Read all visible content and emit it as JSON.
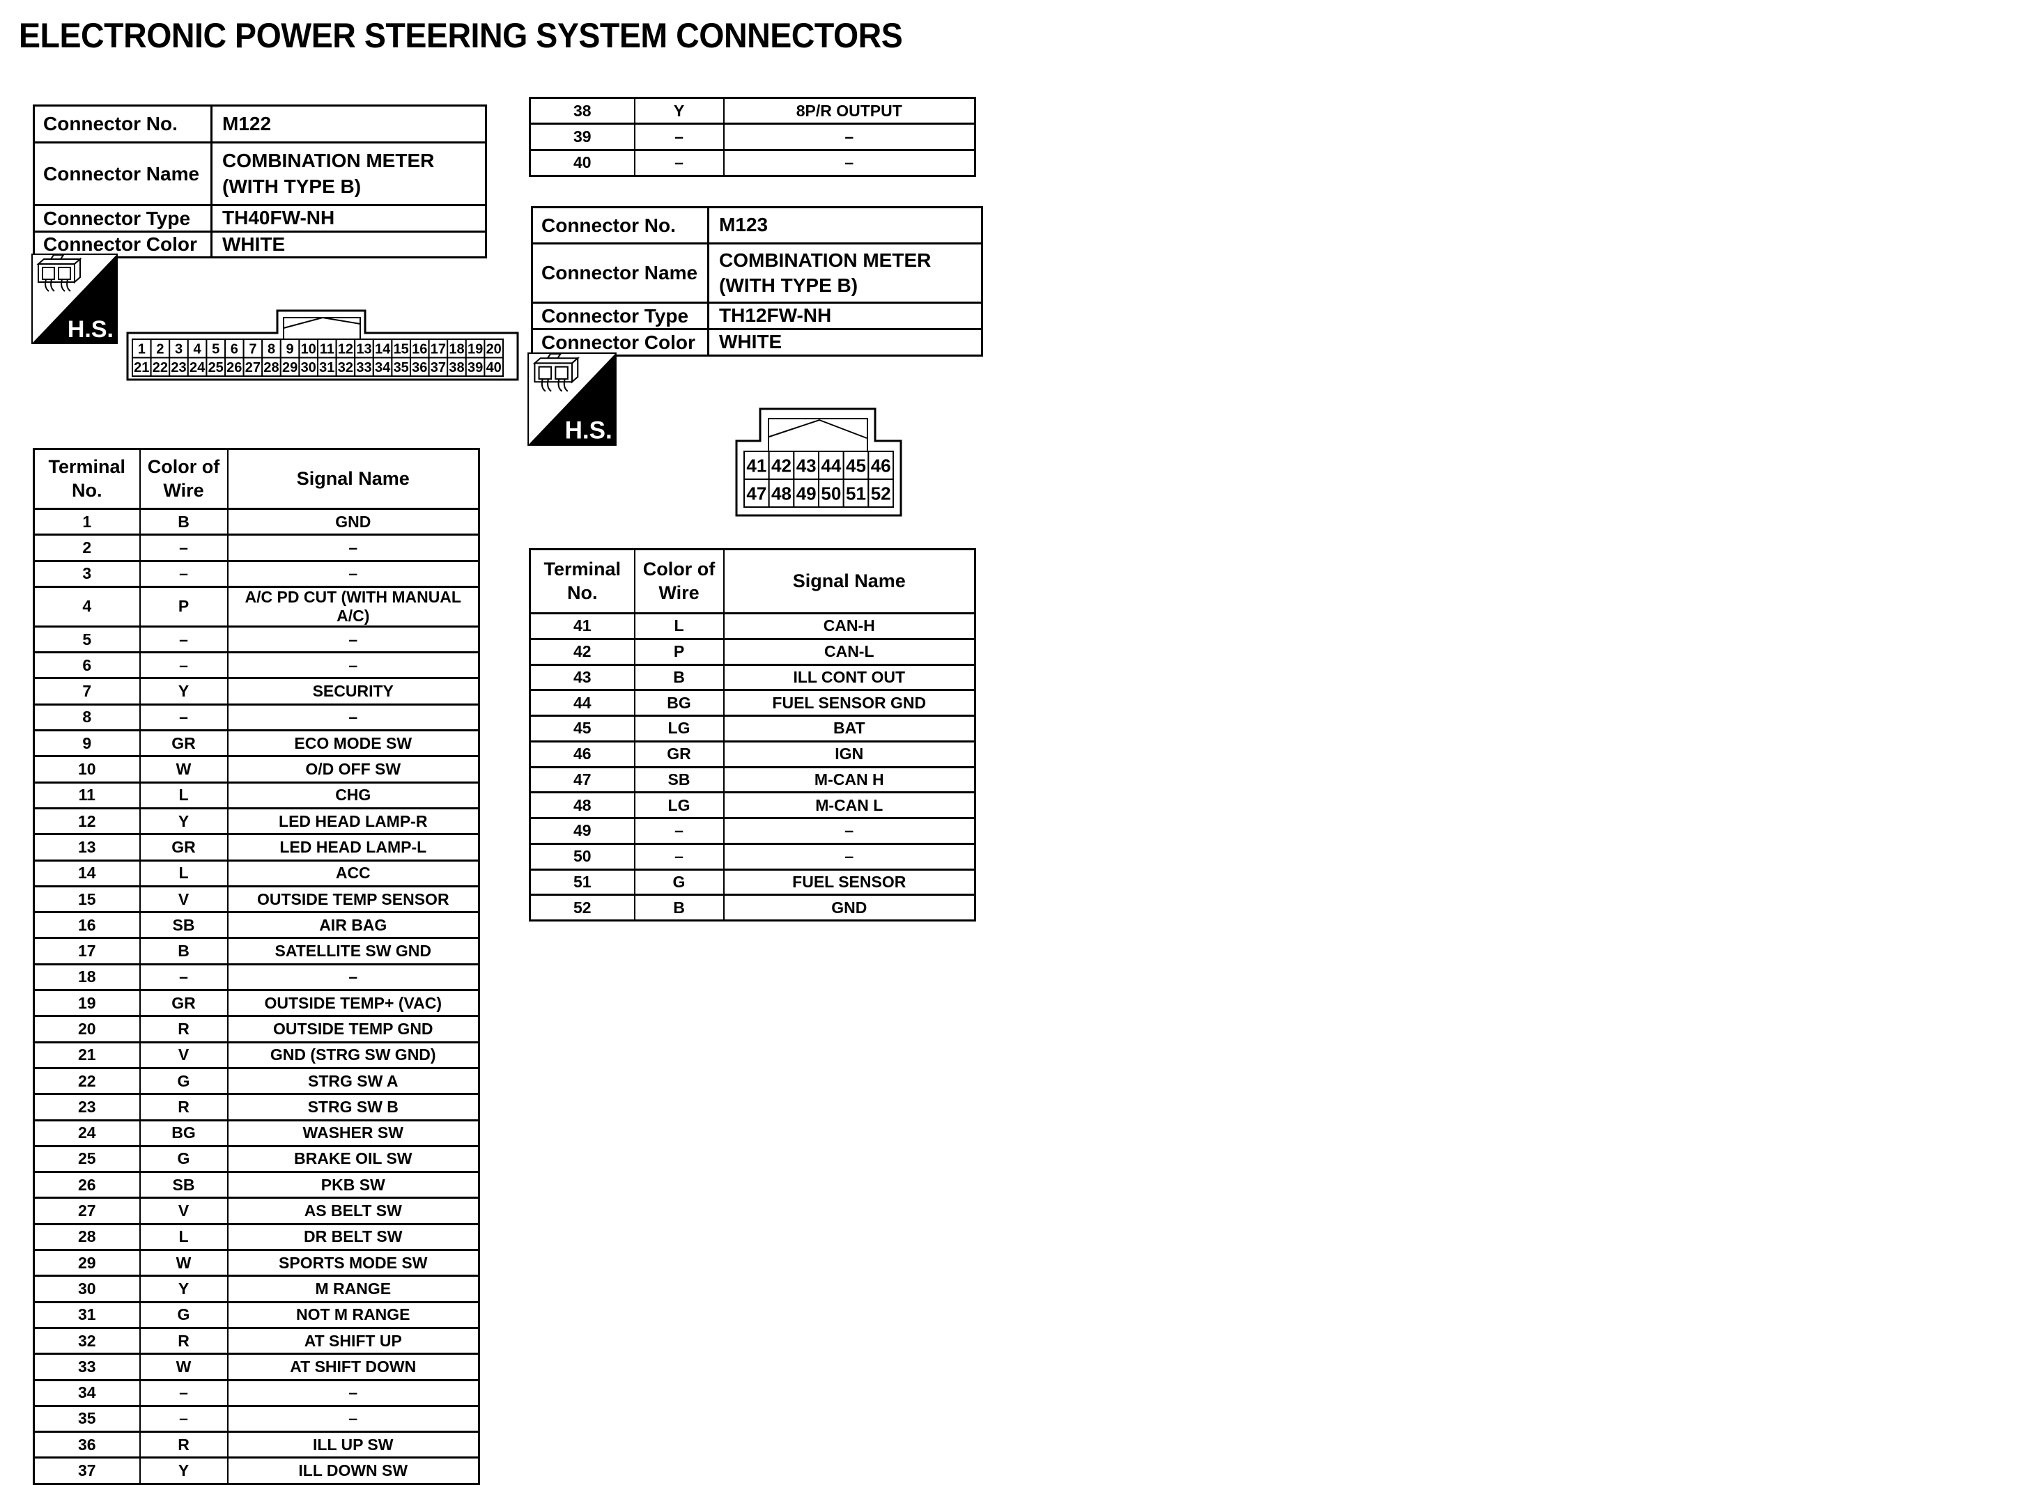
{
  "title": "ELECTRONIC POWER STEERING SYSTEM CONNECTORS",
  "hs_badge": "H.S.",
  "m122": {
    "info": [
      {
        "label": "Connector No.",
        "value": "M122"
      },
      {
        "label": "Connector Name",
        "value": "COMBINATION METER\n(WITH TYPE B)"
      },
      {
        "label": "Connector Type",
        "value": "TH40FW-NH"
      },
      {
        "label": "Connector Color",
        "value": "WHITE"
      }
    ],
    "pins_row1": [
      "1",
      "2",
      "3",
      "4",
      "5",
      "6",
      "7",
      "8",
      "9",
      "10",
      "11",
      "12",
      "13",
      "14",
      "15",
      "16",
      "17",
      "18",
      "19",
      "20"
    ],
    "pins_row2": [
      "21",
      "22",
      "23",
      "24",
      "25",
      "26",
      "27",
      "28",
      "29",
      "30",
      "31",
      "32",
      "33",
      "34",
      "35",
      "36",
      "37",
      "38",
      "39",
      "40"
    ],
    "terminal_table": {
      "headers": [
        "Terminal\nNo.",
        "Color of\nWire",
        "Signal Name"
      ],
      "rows": [
        [
          "1",
          "B",
          "GND"
        ],
        [
          "2",
          "–",
          "–"
        ],
        [
          "3",
          "–",
          "–"
        ],
        [
          "4",
          "P",
          "A/C PD CUT (WITH MANUAL A/C)"
        ],
        [
          "5",
          "–",
          "–"
        ],
        [
          "6",
          "–",
          "–"
        ],
        [
          "7",
          "Y",
          "SECURITY"
        ],
        [
          "8",
          "–",
          "–"
        ],
        [
          "9",
          "GR",
          "ECO MODE SW"
        ],
        [
          "10",
          "W",
          "O/D OFF SW"
        ],
        [
          "11",
          "L",
          "CHG"
        ],
        [
          "12",
          "Y",
          "LED HEAD LAMP-R"
        ],
        [
          "13",
          "GR",
          "LED HEAD LAMP-L"
        ],
        [
          "14",
          "L",
          "ACC"
        ],
        [
          "15",
          "V",
          "OUTSIDE TEMP SENSOR"
        ],
        [
          "16",
          "SB",
          "AIR BAG"
        ],
        [
          "17",
          "B",
          "SATELLITE SW GND"
        ],
        [
          "18",
          "–",
          "–"
        ],
        [
          "19",
          "GR",
          "OUTSIDE TEMP+ (VAC)"
        ],
        [
          "20",
          "R",
          "OUTSIDE TEMP GND"
        ],
        [
          "21",
          "V",
          "GND (STRG SW GND)"
        ],
        [
          "22",
          "G",
          "STRG SW A"
        ],
        [
          "23",
          "R",
          "STRG SW B"
        ],
        [
          "24",
          "BG",
          "WASHER SW"
        ],
        [
          "25",
          "G",
          "BRAKE OIL SW"
        ],
        [
          "26",
          "SB",
          "PKB SW"
        ],
        [
          "27",
          "V",
          "AS BELT SW"
        ],
        [
          "28",
          "L",
          "DR BELT SW"
        ],
        [
          "29",
          "W",
          "SPORTS MODE SW"
        ],
        [
          "30",
          "Y",
          "M RANGE"
        ],
        [
          "31",
          "G",
          "NOT M RANGE"
        ],
        [
          "32",
          "R",
          "AT SHIFT UP"
        ],
        [
          "33",
          "W",
          "AT SHIFT DOWN"
        ],
        [
          "34",
          "–",
          "–"
        ],
        [
          "35",
          "–",
          "–"
        ],
        [
          "36",
          "R",
          "ILL UP SW"
        ],
        [
          "37",
          "Y",
          "ILL DOWN SW"
        ]
      ]
    },
    "continuation": {
      "rows": [
        [
          "38",
          "Y",
          "8P/R OUTPUT"
        ],
        [
          "39",
          "–",
          "–"
        ],
        [
          "40",
          "–",
          "–"
        ]
      ]
    }
  },
  "m123": {
    "info": [
      {
        "label": "Connector No.",
        "value": "M123"
      },
      {
        "label": "Connector Name",
        "value": "COMBINATION METER\n(WITH TYPE B)"
      },
      {
        "label": "Connector Type",
        "value": "TH12FW-NH"
      },
      {
        "label": "Connector Color",
        "value": "WHITE"
      }
    ],
    "pins_row1": [
      "41",
      "42",
      "43",
      "44",
      "45",
      "46"
    ],
    "pins_row2": [
      "47",
      "48",
      "49",
      "50",
      "51",
      "52"
    ],
    "terminal_table": {
      "headers": [
        "Terminal\nNo.",
        "Color of\nWire",
        "Signal Name"
      ],
      "rows": [
        [
          "41",
          "L",
          "CAN-H"
        ],
        [
          "42",
          "P",
          "CAN-L"
        ],
        [
          "43",
          "B",
          "ILL CONT OUT"
        ],
        [
          "44",
          "BG",
          "FUEL SENSOR GND"
        ],
        [
          "45",
          "LG",
          "BAT"
        ],
        [
          "46",
          "GR",
          "IGN"
        ],
        [
          "47",
          "SB",
          "M-CAN H"
        ],
        [
          "48",
          "LG",
          "M-CAN L"
        ],
        [
          "49",
          "–",
          "–"
        ],
        [
          "50",
          "–",
          "–"
        ],
        [
          "51",
          "G",
          "FUEL SENSOR"
        ],
        [
          "52",
          "B",
          "GND"
        ]
      ]
    }
  }
}
